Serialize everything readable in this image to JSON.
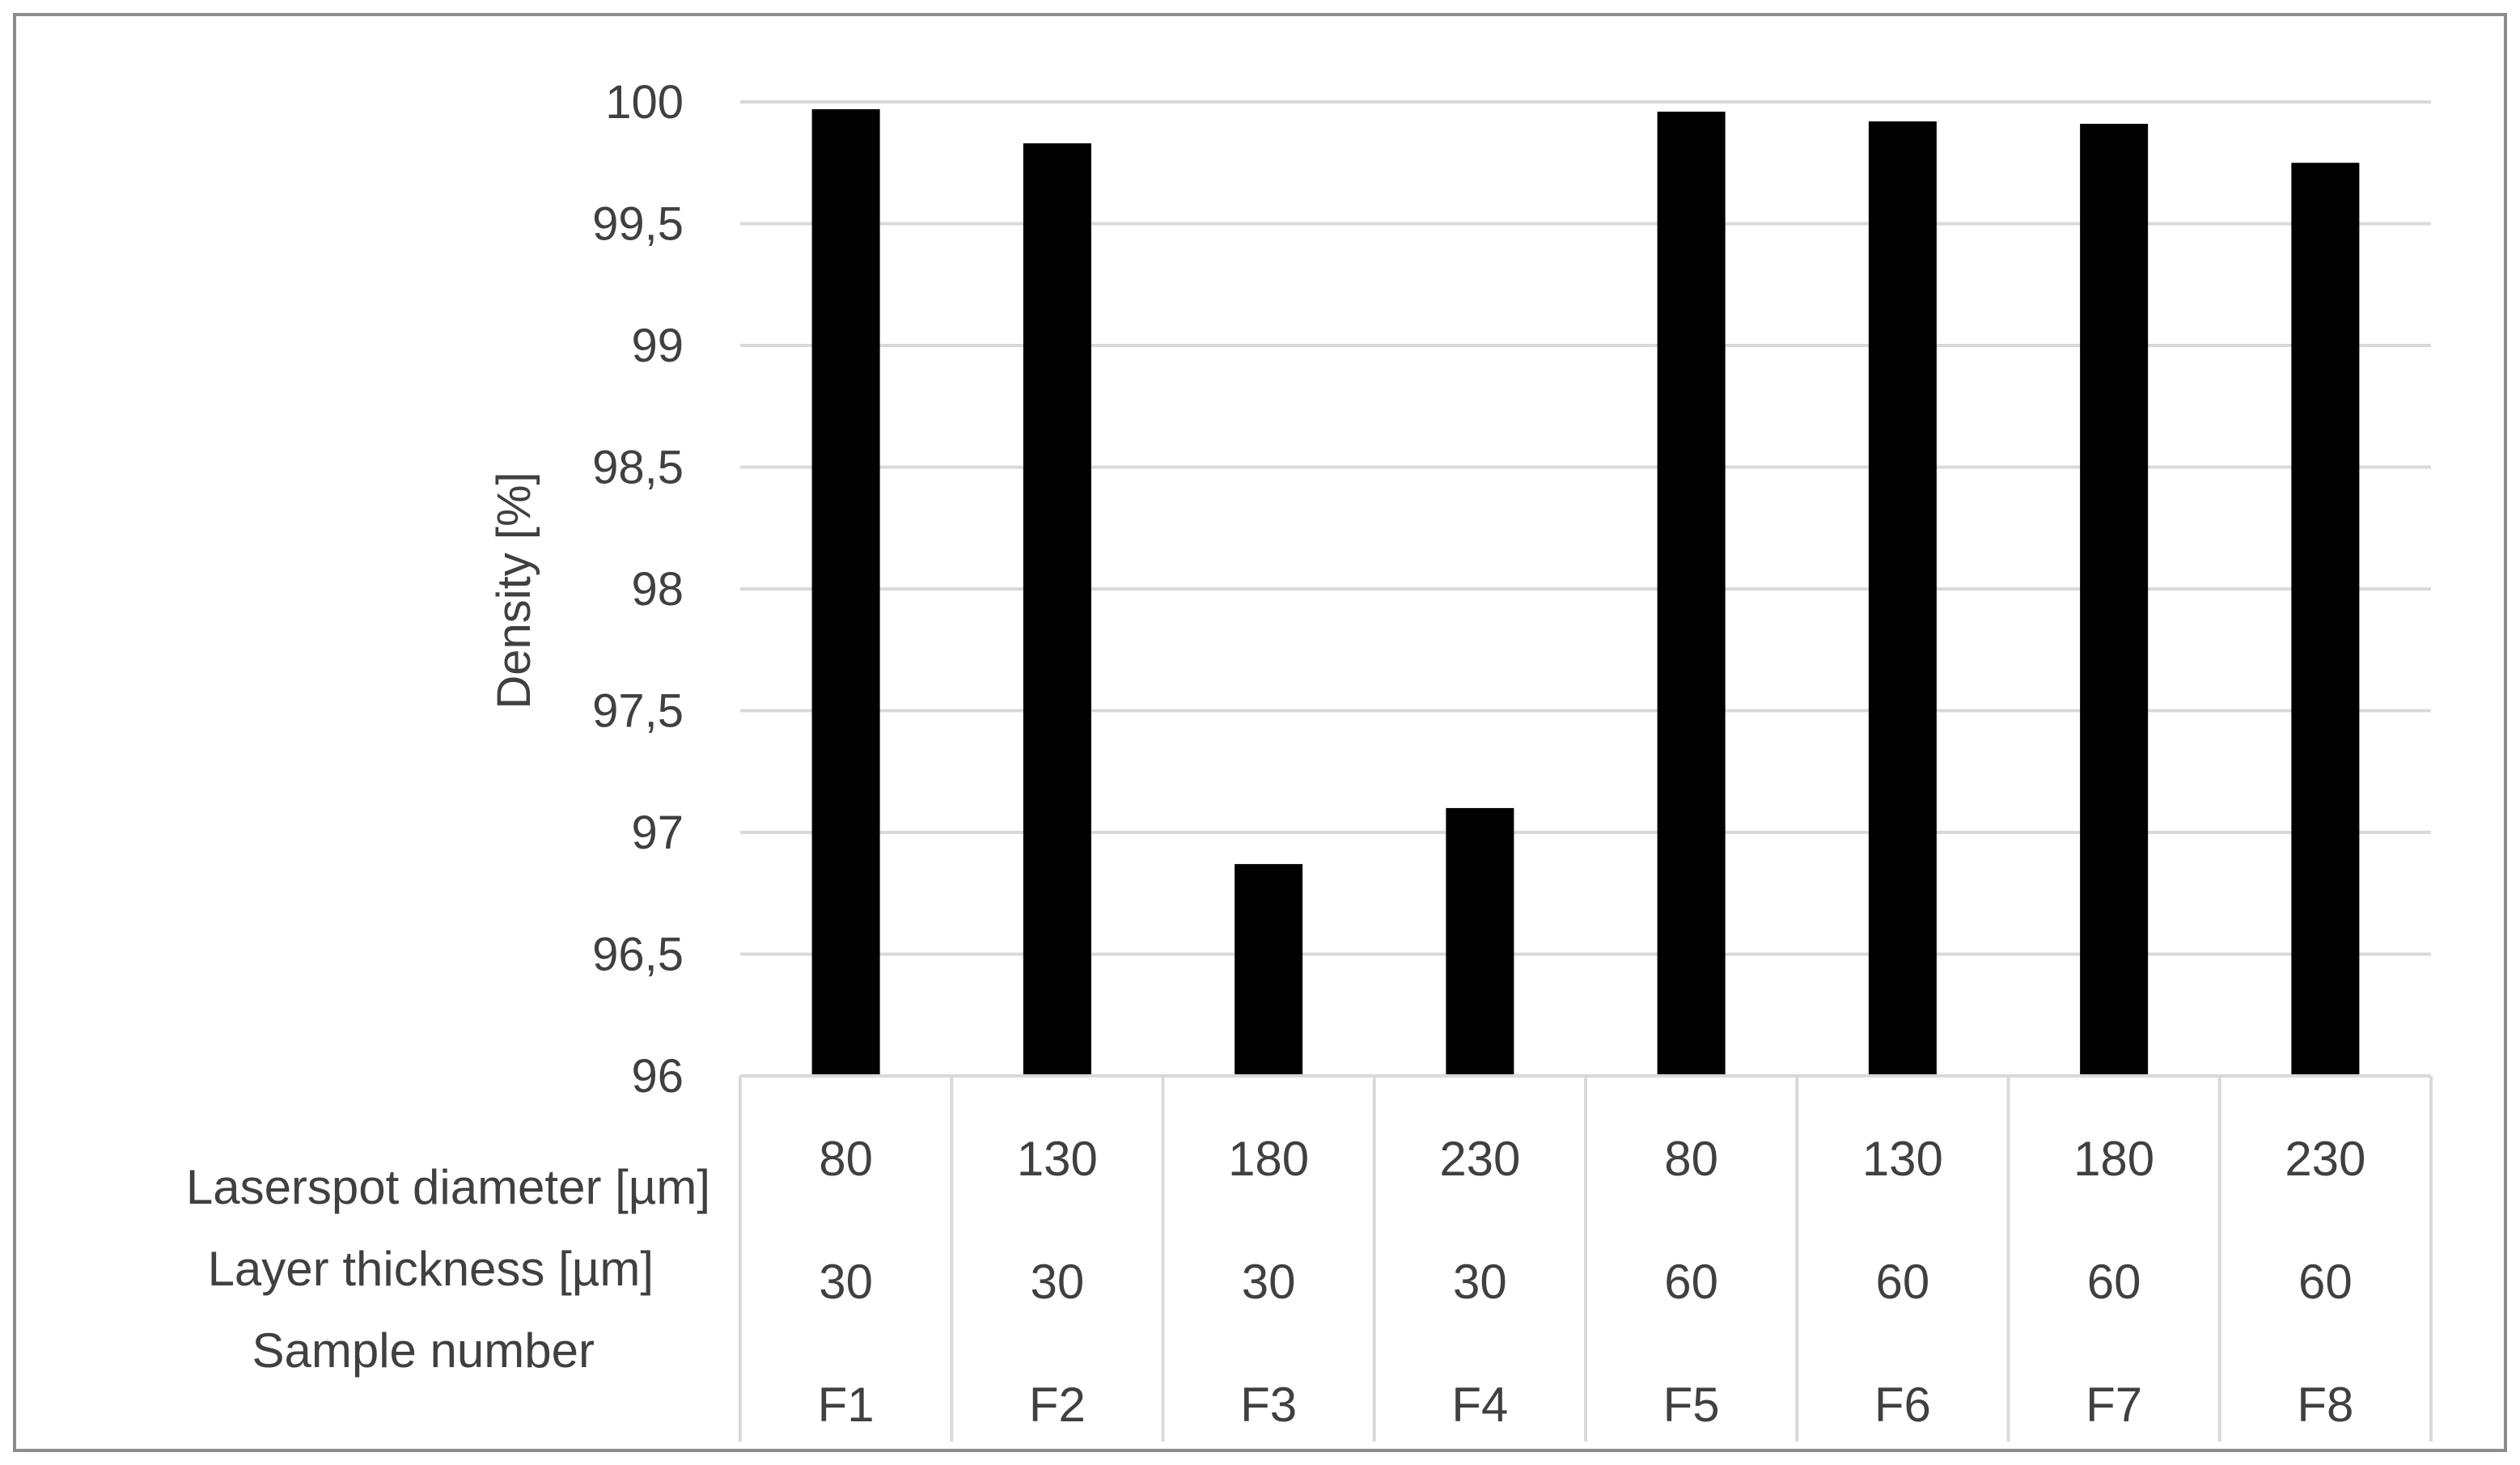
{
  "chart_data": {
    "type": "bar",
    "ylabel": "Density [%]",
    "ylim": [
      96,
      100
    ],
    "yticks": [
      "96",
      "96,5",
      "97",
      "97,5",
      "98",
      "98,5",
      "99",
      "99,5",
      "100"
    ],
    "ytick_values": [
      96,
      96.5,
      97,
      97.5,
      98,
      98.5,
      99,
      99.5,
      100
    ],
    "grid": true,
    "bar_color": "#000000",
    "gridline_color": "#d9d9d9",
    "categories": [
      "F1",
      "F2",
      "F3",
      "F4",
      "F5",
      "F6",
      "F7",
      "F8"
    ],
    "values": [
      99.97,
      99.83,
      96.87,
      97.1,
      99.96,
      99.92,
      99.91,
      99.75
    ],
    "table": {
      "row_labels": [
        "Laserspot diameter [µm]",
        "Layer thickness [µm]",
        "Sample number"
      ],
      "rows": [
        [
          "80",
          "130",
          "180",
          "230",
          "80",
          "130",
          "180",
          "230"
        ],
        [
          "30",
          "30",
          "30",
          "30",
          "60",
          "60",
          "60",
          "60"
        ],
        [
          "F1",
          "F2",
          "F3",
          "F4",
          "F5",
          "F6",
          "F7",
          "F8"
        ]
      ]
    }
  }
}
